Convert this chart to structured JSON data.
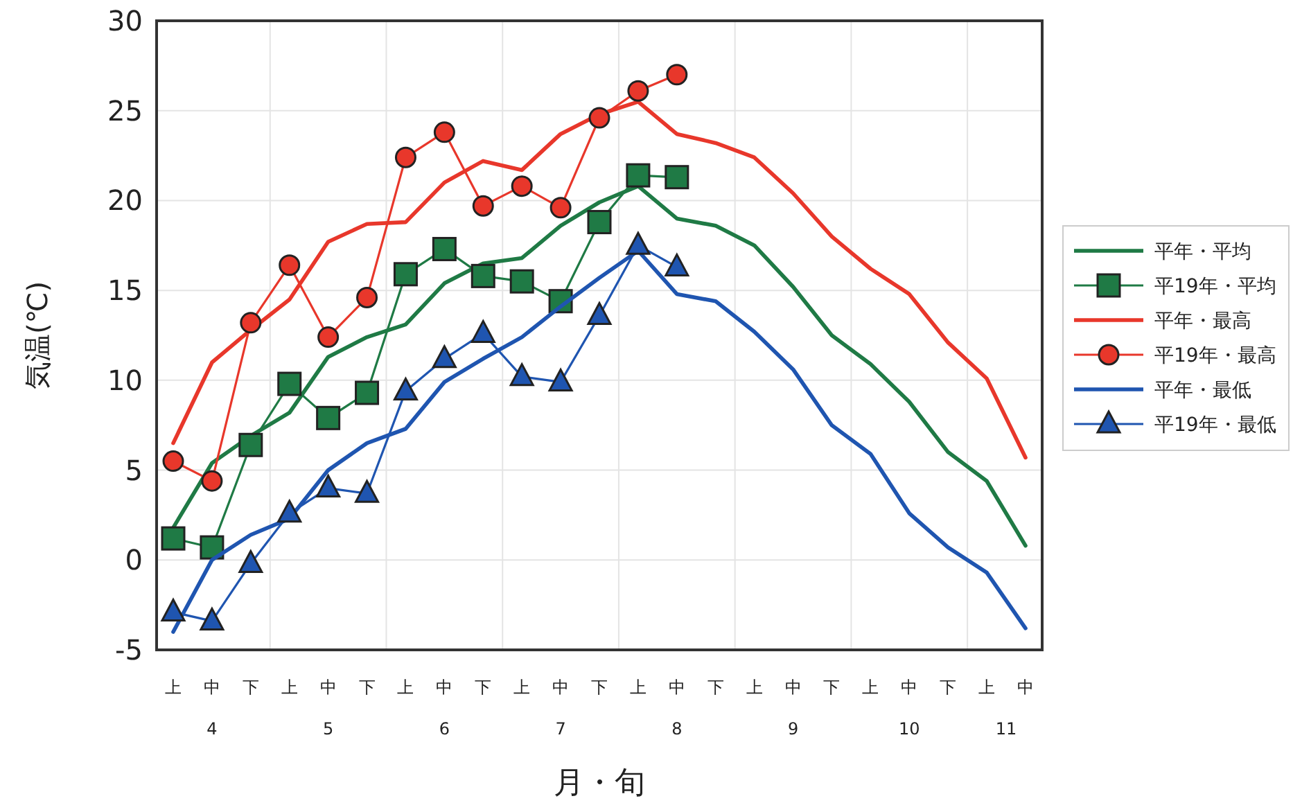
{
  "chart_data": {
    "type": "line",
    "xlabel": "月・旬",
    "ylabel": "気温(℃)",
    "categories": [
      "上",
      "中",
      "下",
      "上",
      "中",
      "下",
      "上",
      "中",
      "下",
      "上",
      "中",
      "下",
      "上",
      "中",
      "下",
      "上",
      "中",
      "下",
      "上",
      "中",
      "下",
      "上",
      "中"
    ],
    "annotations": [
      "4",
      "5",
      "6",
      "7",
      "8",
      "9",
      "10",
      "11"
    ],
    "ylim": [
      -5,
      30
    ],
    "yticks": [
      -5,
      0,
      5,
      10,
      15,
      20,
      25,
      30
    ],
    "grid": true,
    "legend": "right",
    "series": [
      {
        "name": "平年・平均",
        "color": "#1f7a45",
        "values": [
          1.8,
          5.4,
          6.9,
          8.2,
          11.3,
          12.4,
          13.1,
          15.4,
          16.5,
          16.8,
          18.6,
          19.9,
          20.8,
          19.0,
          18.6,
          17.5,
          15.2,
          12.5,
          10.9,
          8.8,
          6.0,
          4.4,
          0.8
        ]
      },
      {
        "name": "平19年・平均",
        "color": "#1f7a45",
        "marker": "square",
        "values": [
          1.2,
          0.7,
          6.4,
          9.8,
          7.9,
          9.3,
          15.9,
          17.3,
          15.8,
          15.5,
          14.4,
          18.8,
          21.4,
          21.3,
          null,
          null,
          null,
          null,
          null,
          null,
          null,
          null,
          null
        ]
      },
      {
        "name": "平年・最高",
        "color": "#e8372b",
        "values": [
          6.5,
          11.0,
          12.8,
          14.5,
          17.7,
          18.7,
          18.8,
          21.0,
          22.2,
          21.7,
          23.7,
          24.8,
          25.5,
          23.7,
          23.2,
          22.4,
          20.4,
          18.0,
          16.2,
          14.8,
          12.1,
          10.1,
          5.7
        ]
      },
      {
        "name": "平19年・最高",
        "color": "#e8372b",
        "marker": "circle",
        "values": [
          5.5,
          4.4,
          13.2,
          16.4,
          12.4,
          14.6,
          22.4,
          23.8,
          19.7,
          20.8,
          19.6,
          24.6,
          26.1,
          27.0,
          null,
          null,
          null,
          null,
          null,
          null,
          null,
          null,
          null
        ]
      },
      {
        "name": "平年・最低",
        "color": "#1f55b0",
        "values": [
          -4.0,
          0.0,
          1.4,
          2.3,
          5.0,
          6.5,
          7.3,
          9.9,
          11.2,
          12.4,
          14.1,
          15.7,
          17.2,
          14.8,
          14.4,
          12.7,
          10.6,
          7.5,
          5.9,
          2.6,
          0.7,
          -0.7,
          -3.8
        ]
      },
      {
        "name": "平19年・最低",
        "color": "#1f55b0",
        "marker": "triangle",
        "values": [
          -2.9,
          -3.4,
          -0.2,
          2.6,
          4.0,
          3.7,
          9.4,
          11.2,
          12.6,
          10.2,
          9.9,
          13.6,
          17.5,
          16.3,
          null,
          null,
          null,
          null,
          null,
          null,
          null,
          null,
          null
        ]
      }
    ]
  }
}
